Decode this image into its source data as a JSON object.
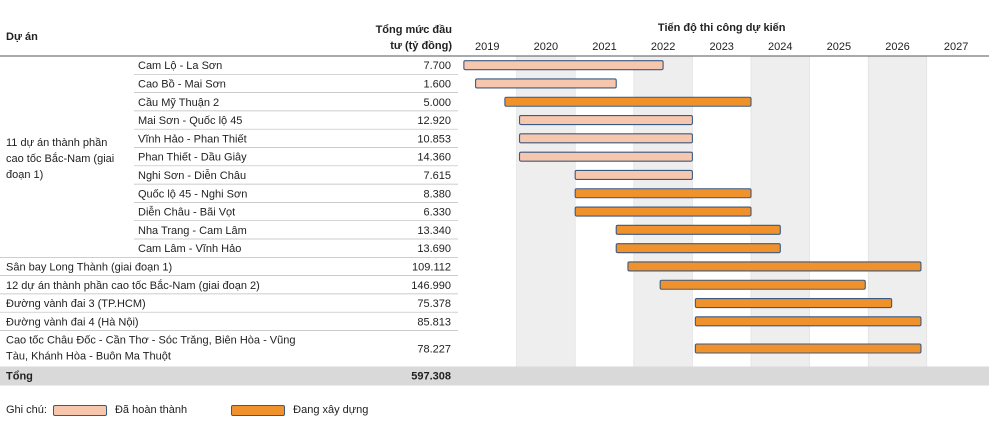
{
  "chart_data": {
    "type": "gantt",
    "header": {
      "project_col": "Dự án",
      "investment_col_line1": "Tổng mức đầu",
      "investment_col_line2": "tư (tỷ đồng)",
      "timeline_title": "Tiến độ thi công dự kiến"
    },
    "years": [
      "2019",
      "2020",
      "2021",
      "2022",
      "2023",
      "2024",
      "2025",
      "2026",
      "2027"
    ],
    "colors": {
      "completed": "#f6c6ad",
      "in_progress": "#f0922b",
      "bar_border": "#3b5a82",
      "shade": "#eeeeee",
      "total_row": "#d9d9d9"
    },
    "groups": [
      {
        "label": "11 dự án thành phần cao tốc Bắc-Nam (giai đoạn 1)",
        "label_lines": [
          "11 dự án thành phần",
          "cao tốc Bắc-Nam (giai",
          "đoạn 1)"
        ],
        "rows": [
          {
            "name": "Cam Lộ - La Sơn",
            "investment": "7.700",
            "start": 2019.1,
            "end": 2022.5,
            "status": "completed"
          },
          {
            "name": "Cao Bồ - Mai Sơn",
            "investment": "1.600",
            "start": 2019.3,
            "end": 2021.7,
            "status": "completed"
          },
          {
            "name": "Cầu Mỹ Thuận 2",
            "investment": "5.000",
            "start": 2019.8,
            "end": 2024.0,
            "status": "in_progress"
          },
          {
            "name": "Mai Sơn - Quốc lộ 45",
            "investment": "12.920",
            "start": 2020.05,
            "end": 2023.0,
            "status": "completed"
          },
          {
            "name": "Vĩnh Hảo - Phan Thiết",
            "investment": "10.853",
            "start": 2020.05,
            "end": 2023.0,
            "status": "completed"
          },
          {
            "name": "Phan Thiết - Dầu Giây",
            "investment": "14.360",
            "start": 2020.05,
            "end": 2023.0,
            "status": "completed"
          },
          {
            "name": "Nghi Sơn - Diễn Châu",
            "investment": "7.615",
            "start": 2021.0,
            "end": 2023.0,
            "status": "completed"
          },
          {
            "name": "Quốc lộ 45 - Nghi Sơn",
            "investment": "8.380",
            "start": 2021.0,
            "end": 2024.0,
            "status": "in_progress"
          },
          {
            "name": "Diễn Châu - Bãi Vọt",
            "investment": "6.330",
            "start": 2021.0,
            "end": 2024.0,
            "status": "in_progress"
          },
          {
            "name": "Nha Trang - Cam Lâm",
            "investment": "13.340",
            "start": 2021.7,
            "end": 2024.5,
            "status": "in_progress"
          },
          {
            "name": "Cam Lâm - Vĩnh Hảo",
            "investment": "13.690",
            "start": 2021.7,
            "end": 2024.5,
            "status": "in_progress"
          }
        ]
      }
    ],
    "projects": [
      {
        "name": "Sân bay Long Thành (giai đoạn 1)",
        "investment": "109.112",
        "start": 2021.9,
        "end": 2026.9,
        "status": "in_progress"
      },
      {
        "name": "12 dự án thành phần cao tốc Bắc-Nam (giai đoạn 2)",
        "investment": "146.990",
        "start": 2022.45,
        "end": 2025.95,
        "status": "in_progress"
      },
      {
        "name": "Đường vành đai 3 (TP.HCM)",
        "investment": "75.378",
        "start": 2023.05,
        "end": 2026.4,
        "status": "in_progress"
      },
      {
        "name": "Đường vành đai 4 (Hà Nội)",
        "investment": "85.813",
        "start": 2023.05,
        "end": 2026.9,
        "status": "in_progress"
      },
      {
        "name": "Cao tốc Châu Đốc - Cần Thơ - Sóc Trăng, Biên Hòa - Vũng Tàu, Khánh Hòa - Buôn Ma Thuột",
        "name_lines": [
          "Cao tốc Châu Đốc - Cần Thơ - Sóc Trăng, Biên Hòa - Vũng",
          "Tàu, Khánh Hòa - Buôn Ma Thuột"
        ],
        "investment": "78.227",
        "start": 2023.05,
        "end": 2026.9,
        "status": "in_progress"
      }
    ],
    "total": {
      "label": "Tổng",
      "investment": "597.308"
    },
    "legend": {
      "title": "Ghi chú:",
      "completed": "Đã hoàn thành",
      "in_progress": "Đang xây dựng"
    }
  }
}
